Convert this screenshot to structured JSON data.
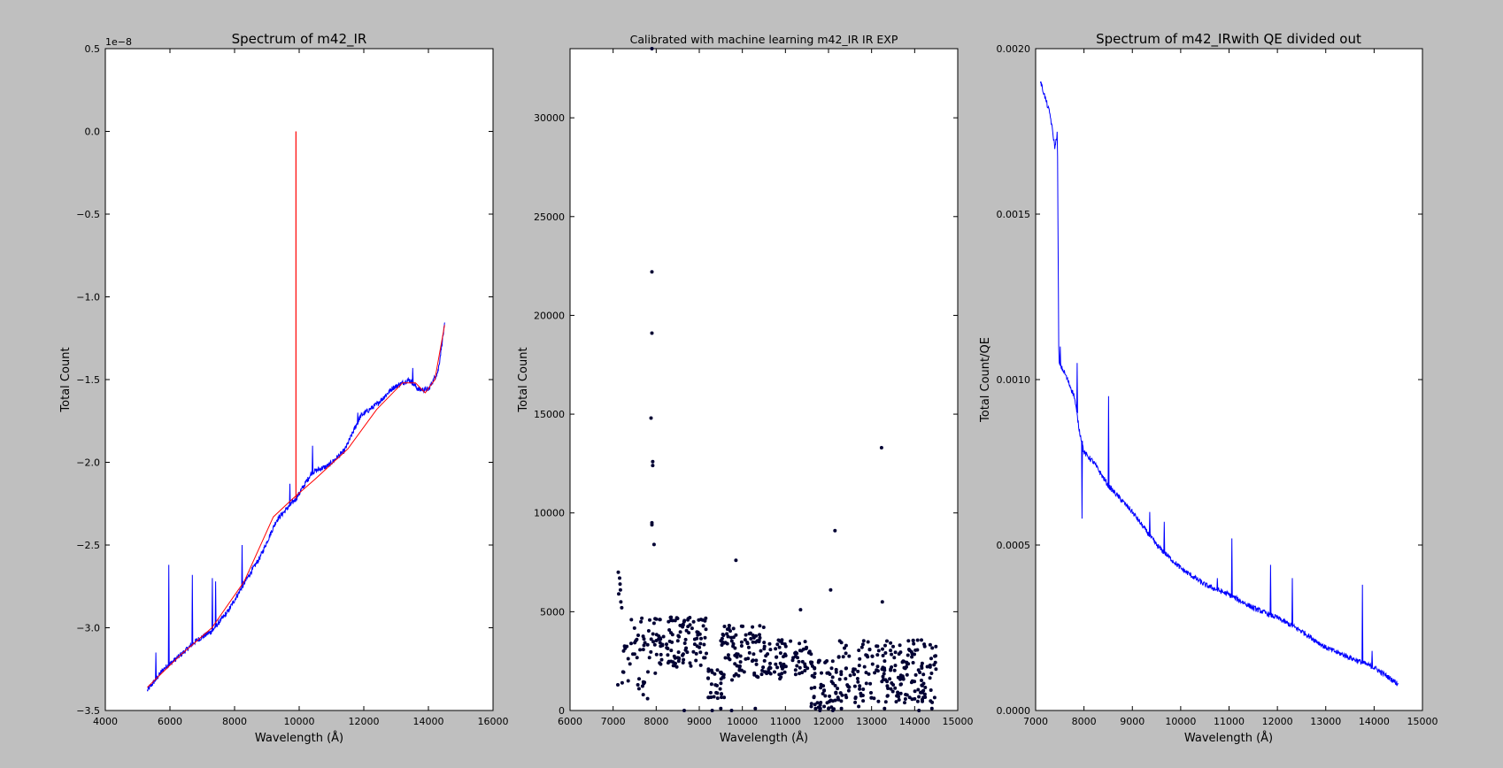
{
  "figure": {
    "background": "#bfbfbf",
    "plot_background": "#ffffff",
    "colors": {
      "blue": "#0000ff",
      "red": "#ff0000",
      "dots": "#000033"
    }
  },
  "chart_data": [
    {
      "type": "line",
      "title": "Spectrum of m42_IR",
      "xlabel": "Wavelength (Å)",
      "ylabel": "Total Count",
      "offset_text": "1e−8",
      "xlim": [
        4000,
        16000
      ],
      "ylim": [
        -3.5,
        0.5
      ],
      "x_ticks": [
        4000,
        6000,
        8000,
        10000,
        12000,
        14000,
        16000
      ],
      "x_tick_labels": [
        "4000",
        "6000",
        "8000",
        "10000",
        "12000",
        "14000",
        "16000"
      ],
      "y_ticks": [
        0.5,
        0.0,
        -0.5,
        -1.0,
        -1.5,
        -2.0,
        -2.5,
        -3.0,
        -3.5
      ],
      "y_tick_labels": [
        "0.5",
        "0.0",
        "−0.5",
        "−1.0",
        "−1.5",
        "−2.0",
        "−2.5",
        "−3.0",
        "−3.5"
      ],
      "grid": false,
      "series": [
        {
          "color": "#0000ff",
          "style": "noisy",
          "x": [
            5300,
            5800,
            6300,
            6800,
            7300,
            7800,
            8300,
            8800,
            9300,
            9900,
            10400,
            10900,
            11400,
            11900,
            12400,
            12900,
            13400,
            13700,
            14000,
            14300,
            14500
          ],
          "y": [
            -3.38,
            -3.25,
            -3.17,
            -3.08,
            -3.02,
            -2.9,
            -2.73,
            -2.57,
            -2.35,
            -2.22,
            -2.06,
            -2.02,
            -1.93,
            -1.72,
            -1.65,
            -1.55,
            -1.5,
            -1.56,
            -1.56,
            -1.45,
            -1.17
          ],
          "spikes": [
            [
              5550,
              -3.15
            ],
            [
              5950,
              -2.62
            ],
            [
              6680,
              -2.68
            ],
            [
              7300,
              -2.7
            ],
            [
              7400,
              -2.72
            ],
            [
              8220,
              -2.5
            ],
            [
              9700,
              -2.13
            ],
            [
              10400,
              -1.9
            ],
            [
              11800,
              -1.7
            ],
            [
              13500,
              -1.43
            ]
          ]
        },
        {
          "color": "#ff0000",
          "style": "smooth",
          "x": [
            5300,
            6300,
            7300,
            8300,
            9200,
            9800,
            10500,
            11500,
            12400,
            13200,
            13600,
            13900,
            14200,
            14500
          ],
          "y": [
            -3.36,
            -3.17,
            -3.0,
            -2.72,
            -2.33,
            -2.22,
            -2.1,
            -1.92,
            -1.68,
            -1.52,
            -1.52,
            -1.58,
            -1.5,
            -1.17
          ],
          "spike": {
            "x": 9900,
            "from": -2.22,
            "to": 0.0
          }
        }
      ]
    },
    {
      "type": "scatter",
      "title": "Calibrated with machine learning m42_IR IR EXP",
      "xlabel": "Wavelength (Å)",
      "ylabel": "Total Count",
      "xlim": [
        6000,
        15000
      ],
      "ylim": [
        0,
        33500
      ],
      "x_ticks": [
        6000,
        7000,
        8000,
        9000,
        10000,
        11000,
        12000,
        13000,
        14000,
        15000
      ],
      "x_tick_labels": [
        "6000",
        "7000",
        "8000",
        "9000",
        "10000",
        "11000",
        "12000",
        "13000",
        "14000",
        "15000"
      ],
      "y_ticks": [
        0,
        5000,
        10000,
        15000,
        20000,
        25000,
        30000
      ],
      "y_tick_labels": [
        "0",
        "5000",
        "10000",
        "15000",
        "20000",
        "25000",
        "30000"
      ],
      "grid": false,
      "points": [
        [
          7900,
          33500
        ],
        [
          7900,
          22200
        ],
        [
          7900,
          19100
        ],
        [
          7880,
          14800
        ],
        [
          7920,
          12600
        ],
        [
          7920,
          12400
        ],
        [
          7900,
          9500
        ],
        [
          7900,
          9400
        ],
        [
          7950,
          8400
        ],
        [
          9850,
          7600
        ],
        [
          12150,
          9100
        ],
        [
          12050,
          6100
        ],
        [
          13230,
          13300
        ],
        [
          13250,
          5500
        ],
        [
          11350,
          5100
        ],
        [
          7120,
          7000
        ],
        [
          7150,
          6700
        ],
        [
          7160,
          6400
        ],
        [
          7170,
          6100
        ],
        [
          7130,
          5900
        ],
        [
          7180,
          5500
        ],
        [
          7200,
          5200
        ],
        [
          7110,
          1300
        ],
        [
          7210,
          1400
        ],
        [
          7350,
          1500
        ],
        [
          7600,
          1100
        ],
        [
          7700,
          800
        ],
        [
          7800,
          600
        ],
        [
          8650,
          0
        ],
        [
          9300,
          0
        ],
        [
          9500,
          100
        ],
        [
          9750,
          0
        ],
        [
          10300,
          100
        ],
        [
          11600,
          200
        ],
        [
          11700,
          100
        ],
        [
          11800,
          0
        ],
        [
          11900,
          200
        ],
        [
          12000,
          100
        ],
        [
          12100,
          0
        ],
        [
          12300,
          100
        ],
        [
          12700,
          200
        ],
        [
          13300,
          100
        ],
        [
          14100,
          0
        ],
        [
          14400,
          100
        ]
      ],
      "cluster_bands": [
        {
          "x": [
            7200,
            8000
          ],
          "y": [
            1200,
            4800
          ],
          "n": 45
        },
        {
          "x": [
            8000,
            9200
          ],
          "y": [
            2200,
            4800
          ],
          "n": 110
        },
        {
          "x": [
            9200,
            9600
          ],
          "y": [
            600,
            2200
          ],
          "n": 30
        },
        {
          "x": [
            9500,
            10500
          ],
          "y": [
            1500,
            4300
          ],
          "n": 90
        },
        {
          "x": [
            10500,
            11600
          ],
          "y": [
            1600,
            3600
          ],
          "n": 80
        },
        {
          "x": [
            11600,
            12200
          ],
          "y": [
            0,
            2600
          ],
          "n": 55
        },
        {
          "x": [
            12200,
            14500
          ],
          "y": [
            400,
            3600
          ],
          "n": 220
        }
      ]
    },
    {
      "type": "line",
      "title": "Spectrum of m42_IRwith QE divided out",
      "xlabel": "Wavelength (Å)",
      "ylabel": "Total Count/QE",
      "xlim": [
        7000,
        15000
      ],
      "ylim": [
        0.0,
        0.002
      ],
      "x_ticks": [
        7000,
        8000,
        9000,
        10000,
        11000,
        12000,
        13000,
        14000,
        15000
      ],
      "x_tick_labels": [
        "7000",
        "8000",
        "9000",
        "10000",
        "11000",
        "12000",
        "13000",
        "14000",
        "15000"
      ],
      "y_ticks": [
        0.0,
        0.0005,
        0.001,
        0.0015,
        0.002
      ],
      "y_tick_labels": [
        "0.0000",
        "0.0005",
        "0.0010",
        "0.0015",
        "0.0020"
      ],
      "grid": false,
      "series": [
        {
          "color": "#0000ff",
          "style": "noisy",
          "x": [
            7100,
            7200,
            7300,
            7400,
            7450,
            7480,
            7600,
            7800,
            7900,
            8000,
            8200,
            8500,
            9000,
            9500,
            10000,
            10500,
            11000,
            11500,
            12000,
            12500,
            13000,
            13500,
            14000,
            14500
          ],
          "y": [
            0.0019,
            0.00185,
            0.0018,
            0.0017,
            0.00175,
            0.00105,
            0.00102,
            0.00095,
            0.00085,
            0.00078,
            0.00075,
            0.00068,
            0.0006,
            0.0005,
            0.00043,
            0.00038,
            0.00035,
            0.00031,
            0.00028,
            0.00024,
            0.00019,
            0.00016,
            0.00013,
            8e-05
          ],
          "spikes": [
            [
              7500,
              0.0011
            ],
            [
              7850,
              0.00105
            ],
            [
              7950,
              0.00058
            ],
            [
              8500,
              0.00095
            ],
            [
              9350,
              0.0006
            ],
            [
              9650,
              0.00057
            ],
            [
              10750,
              0.0004
            ],
            [
              10750,
              0.0004
            ],
            [
              11050,
              0.00052
            ],
            [
              11850,
              0.00044
            ],
            [
              12300,
              0.0004
            ],
            [
              13750,
              0.00038
            ],
            [
              13950,
              0.00018
            ]
          ]
        }
      ]
    }
  ]
}
